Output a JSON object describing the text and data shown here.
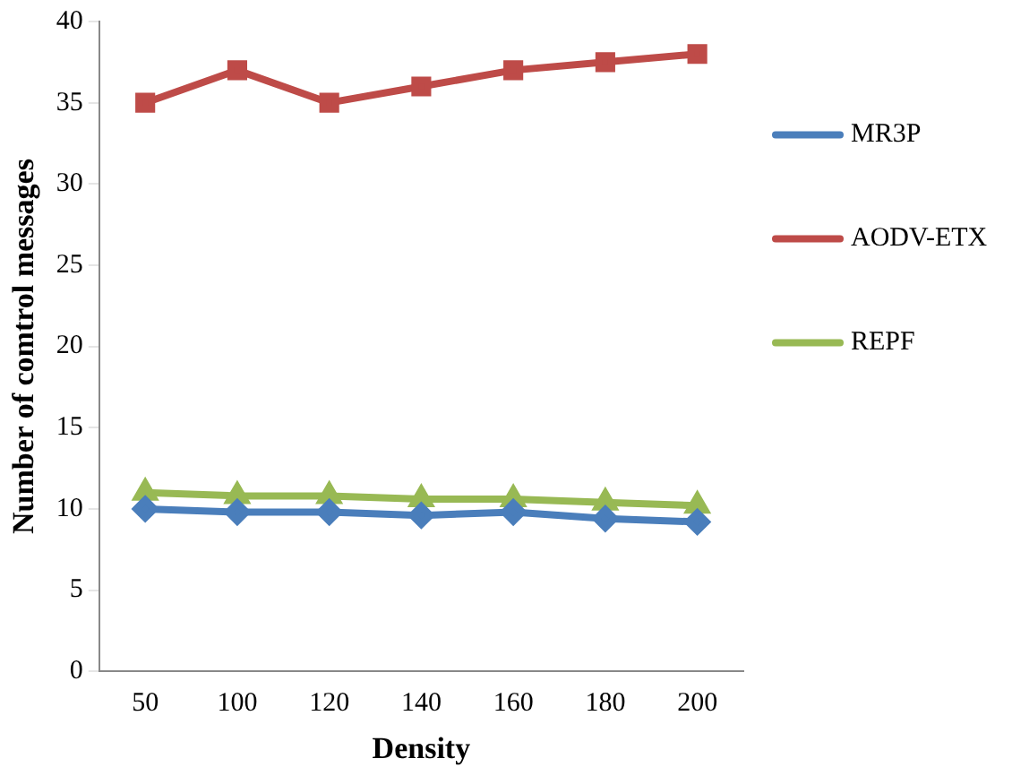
{
  "chart_data": {
    "type": "line",
    "xlabel": "Density",
    "ylabel": "Number of comtrol messages",
    "categories": [
      "50",
      "100",
      "120",
      "140",
      "160",
      "180",
      "200"
    ],
    "series": [
      {
        "name": "MR3P",
        "color": "#4a7ebb",
        "marker": "diamond",
        "values": [
          10,
          9.8,
          9.8,
          9.6,
          9.8,
          9.4,
          9.2
        ]
      },
      {
        "name": "AODV-ETX",
        "color": "#be4b48",
        "marker": "square",
        "values": [
          35,
          37,
          35,
          36,
          37,
          37.5,
          38
        ]
      },
      {
        "name": "REPF",
        "color": "#98b954",
        "marker": "triangle",
        "values": [
          11,
          10.8,
          10.8,
          10.6,
          10.6,
          10.4,
          10.2
        ]
      }
    ],
    "ylim": [
      0,
      40
    ],
    "yticks": [
      0,
      5,
      10,
      15,
      20,
      25,
      30,
      35,
      40
    ],
    "grid": false,
    "legend": "right"
  }
}
